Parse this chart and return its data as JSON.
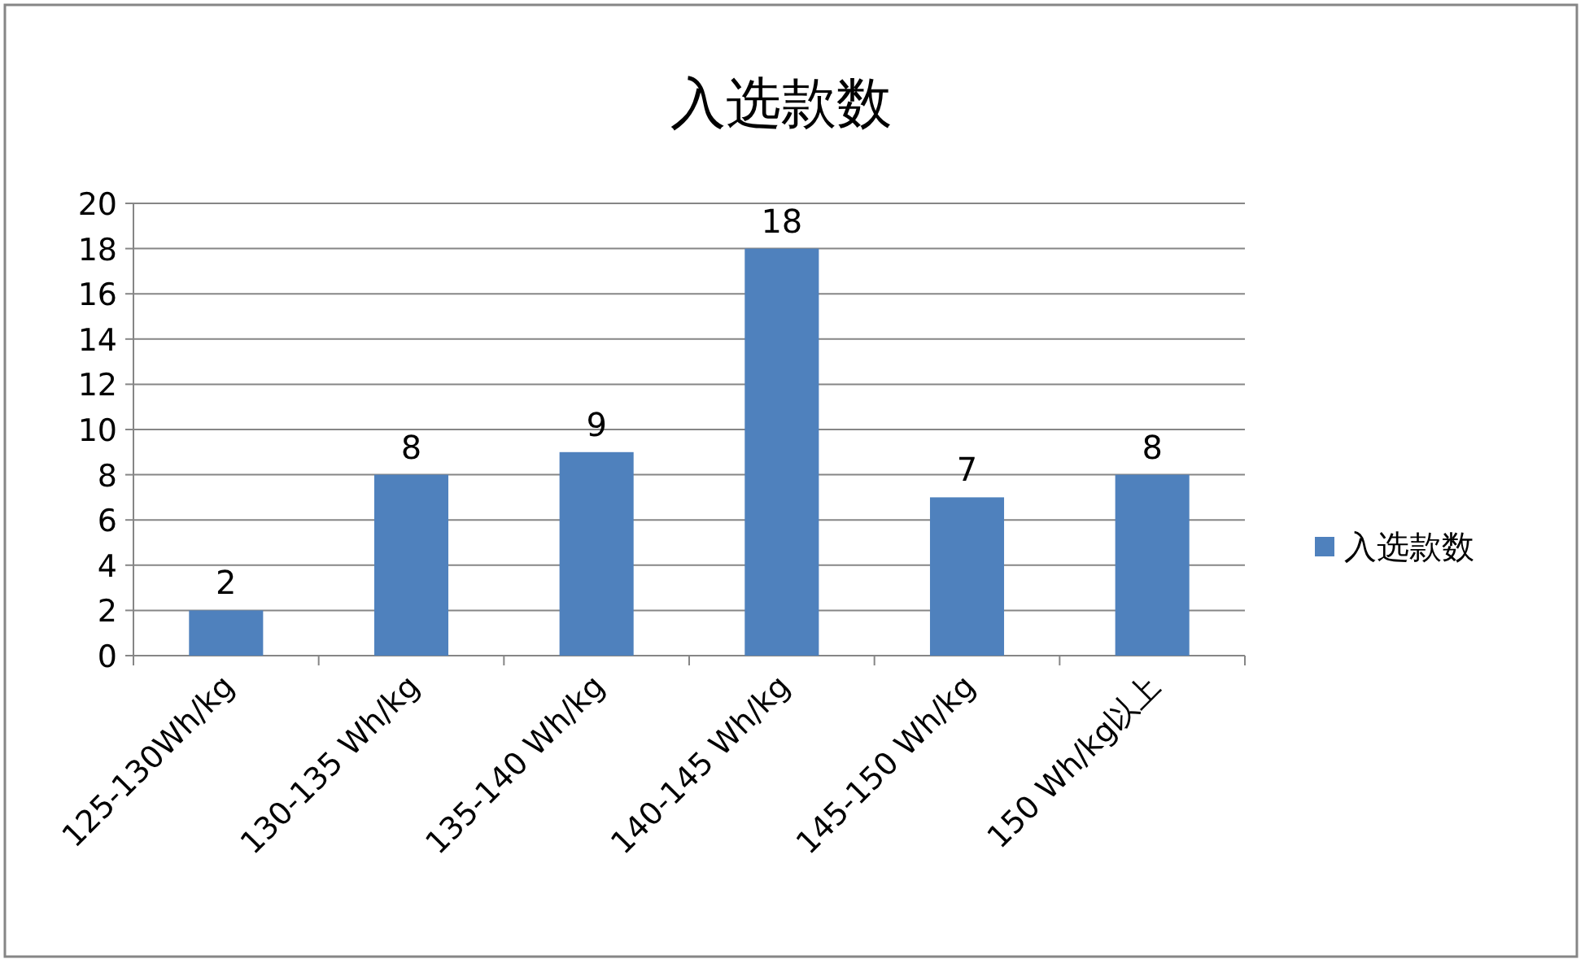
{
  "chart_data": {
    "type": "bar",
    "title": "入选款数",
    "categories": [
      "125-130Wh/kg",
      "130-135 Wh/kg",
      "135-140 Wh/kg",
      "140-145 Wh/kg",
      "145-150 Wh/kg",
      "150 Wh/kg以上"
    ],
    "series": [
      {
        "name": "入选款数",
        "color": "#4f81bd",
        "values": [
          2,
          8,
          9,
          18,
          7,
          8
        ]
      }
    ],
    "ylim": [
      0,
      20
    ],
    "yticks": [
      0,
      2,
      4,
      6,
      8,
      10,
      12,
      14,
      16,
      18,
      20
    ],
    "grid": "y",
    "legend": "right",
    "data_labels": true
  }
}
